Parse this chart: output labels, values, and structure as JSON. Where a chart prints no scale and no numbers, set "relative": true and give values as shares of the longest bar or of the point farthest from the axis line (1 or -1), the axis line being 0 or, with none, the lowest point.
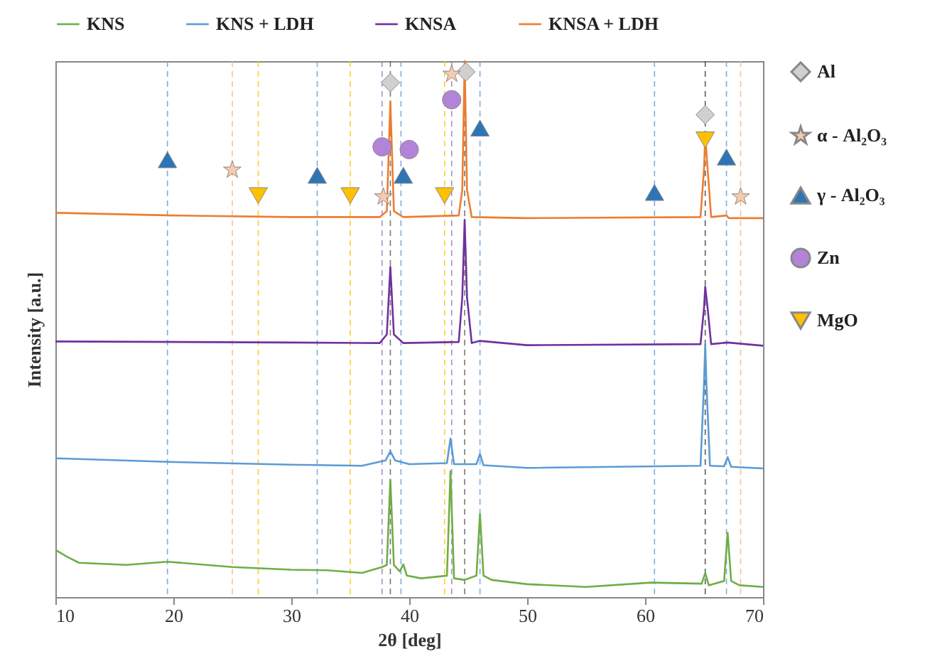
{
  "chart_data": {
    "type": "line",
    "relative": true,
    "xlabel": "2θ [deg]",
    "ylabel": "Intensity [a.u.]",
    "xlim": [
      10,
      70
    ],
    "xticks": [
      10,
      20,
      30,
      40,
      50,
      60,
      70
    ],
    "grid": false,
    "legend": "top",
    "series": [
      {
        "name": "KNS",
        "color": "#70ad47",
        "x": [
          10,
          11,
          12,
          16,
          19.5,
          25,
          30,
          33,
          36,
          37.7,
          38.1,
          38.4,
          38.7,
          39.2,
          39.5,
          39.8,
          41,
          43.2,
          43.5,
          43.8,
          44.7,
          45.7,
          46,
          46.3,
          47,
          50,
          55,
          60.5,
          64.8,
          65.1,
          65.4,
          66.7,
          67,
          67.3,
          68,
          70
        ],
        "values": [
          0.088,
          0.075,
          0.064,
          0.06,
          0.066,
          0.056,
          0.051,
          0.05,
          0.045,
          0.056,
          0.06,
          0.219,
          0.06,
          0.048,
          0.061,
          0.04,
          0.035,
          0.04,
          0.235,
          0.035,
          0.032,
          0.04,
          0.155,
          0.04,
          0.032,
          0.024,
          0.019,
          0.027,
          0.025,
          0.045,
          0.022,
          0.03,
          0.12,
          0.03,
          0.022,
          0.019
        ]
      },
      {
        "name": "KNS + LDH",
        "color": "#5b9bd5",
        "x": [
          10,
          20,
          30,
          36,
          38,
          38.4,
          38.8,
          40,
          43.2,
          43.5,
          43.8,
          45.7,
          46,
          46.3,
          50,
          64.7,
          65,
          65.1,
          65.2,
          65.5,
          66.7,
          67,
          67.3,
          70
        ],
        "values": [
          0.259,
          0.252,
          0.247,
          0.245,
          0.255,
          0.272,
          0.255,
          0.248,
          0.25,
          0.296,
          0.248,
          0.248,
          0.267,
          0.246,
          0.241,
          0.245,
          0.4,
          0.472,
          0.4,
          0.245,
          0.244,
          0.261,
          0.243,
          0.24
        ]
      },
      {
        "name": "KNSA",
        "color": "#7030a0",
        "x": [
          10,
          30,
          37.5,
          38.1,
          38.4,
          38.7,
          39.5,
          44.2,
          44.5,
          44.7,
          44.9,
          45.3,
          46,
          50,
          64.7,
          65,
          65.1,
          65.3,
          65.6,
          67,
          70
        ],
        "values": [
          0.477,
          0.475,
          0.474,
          0.49,
          0.616,
          0.49,
          0.474,
          0.476,
          0.56,
          0.704,
          0.56,
          0.474,
          0.478,
          0.47,
          0.472,
          0.54,
          0.579,
          0.54,
          0.472,
          0.475,
          0.469
        ]
      },
      {
        "name": "KNSA + LDH",
        "color": "#ed7d31",
        "x": [
          10,
          20,
          30,
          37.5,
          38.1,
          38.4,
          38.7,
          39.5,
          44.2,
          44.5,
          44.7,
          44.9,
          45.3,
          50,
          64.7,
          65,
          65.1,
          65.3,
          65.6,
          66.9,
          67.1,
          70
        ],
        "values": [
          0.717,
          0.712,
          0.709,
          0.709,
          0.72,
          0.925,
          0.72,
          0.709,
          0.712,
          0.76,
          1.0,
          0.76,
          0.709,
          0.707,
          0.709,
          0.8,
          0.861,
          0.8,
          0.709,
          0.712,
          0.707,
          0.707
        ]
      },
      {
        "name": "Al",
        "type": "scatter",
        "marker": "diamond",
        "color": "#d0d0d0",
        "x": [
          38.4,
          44.8,
          65.1
        ],
        "values": [
          0.96,
          0.98,
          0.9
        ]
      },
      {
        "name": "α - Al₂O₃",
        "type": "scatter",
        "marker": "star",
        "color": "#f8cbad",
        "x": [
          25,
          37.8,
          43.6,
          68.1
        ],
        "values": [
          0.797,
          0.747,
          0.976,
          0.747
        ]
      },
      {
        "name": "γ - Al₂O₃",
        "type": "scatter",
        "marker": "triangle",
        "color": "#2e75b6",
        "x": [
          19.5,
          32.2,
          39.5,
          46,
          60.8,
          66.9
        ],
        "values": [
          0.816,
          0.787,
          0.787,
          0.875,
          0.755,
          0.821
        ]
      },
      {
        "name": "Zn",
        "type": "scatter",
        "marker": "circle",
        "color": "#b383d9",
        "x": [
          37.7,
          40,
          43.6
        ],
        "values": [
          0.84,
          0.835,
          0.928
        ]
      },
      {
        "name": "MgO",
        "type": "scatter",
        "marker": "triangle-down",
        "color": "#ffc000",
        "x": [
          27.2,
          35,
          43,
          65.1
        ],
        "values": [
          0.749,
          0.749,
          0.749,
          0.853
        ]
      }
    ],
    "ref_lines": [
      {
        "axis": "x",
        "value": 19.5,
        "color": "#5b9bd5",
        "line_style": "dashed"
      },
      {
        "axis": "x",
        "value": 25,
        "color": "#f4b183",
        "line_style": "dashed"
      },
      {
        "axis": "x",
        "value": 27.2,
        "color": "#ffc000",
        "line_style": "dashed"
      },
      {
        "axis": "x",
        "value": 32.2,
        "color": "#5b9bd5",
        "line_style": "dashed"
      },
      {
        "axis": "x",
        "value": 35,
        "color": "#ffc000",
        "line_style": "dashed"
      },
      {
        "axis": "x",
        "value": 37.7,
        "color": "#9673b9",
        "line_style": "dashed"
      },
      {
        "axis": "x",
        "value": 38.4,
        "color": "#555555",
        "line_style": "dashed"
      },
      {
        "axis": "x",
        "value": 39.3,
        "color": "#5b9bd5",
        "line_style": "dashed"
      },
      {
        "axis": "x",
        "value": 43,
        "color": "#ffc000",
        "line_style": "dashed"
      },
      {
        "axis": "x",
        "value": 43.6,
        "color": "#9673b9",
        "line_style": "dashed"
      },
      {
        "axis": "x",
        "value": 44.7,
        "color": "#555555",
        "line_style": "dashed"
      },
      {
        "axis": "x",
        "value": 46,
        "color": "#5b9bd5",
        "line_style": "dashed"
      },
      {
        "axis": "x",
        "value": 60.8,
        "color": "#5b9bd5",
        "line_style": "dashed"
      },
      {
        "axis": "x",
        "value": 65.1,
        "color": "#333333",
        "line_style": "dashed"
      },
      {
        "axis": "x",
        "value": 66.9,
        "color": "#5b9bd5",
        "line_style": "dashed"
      },
      {
        "axis": "x",
        "value": 68.1,
        "color": "#f4b183",
        "line_style": "dashed"
      }
    ]
  }
}
